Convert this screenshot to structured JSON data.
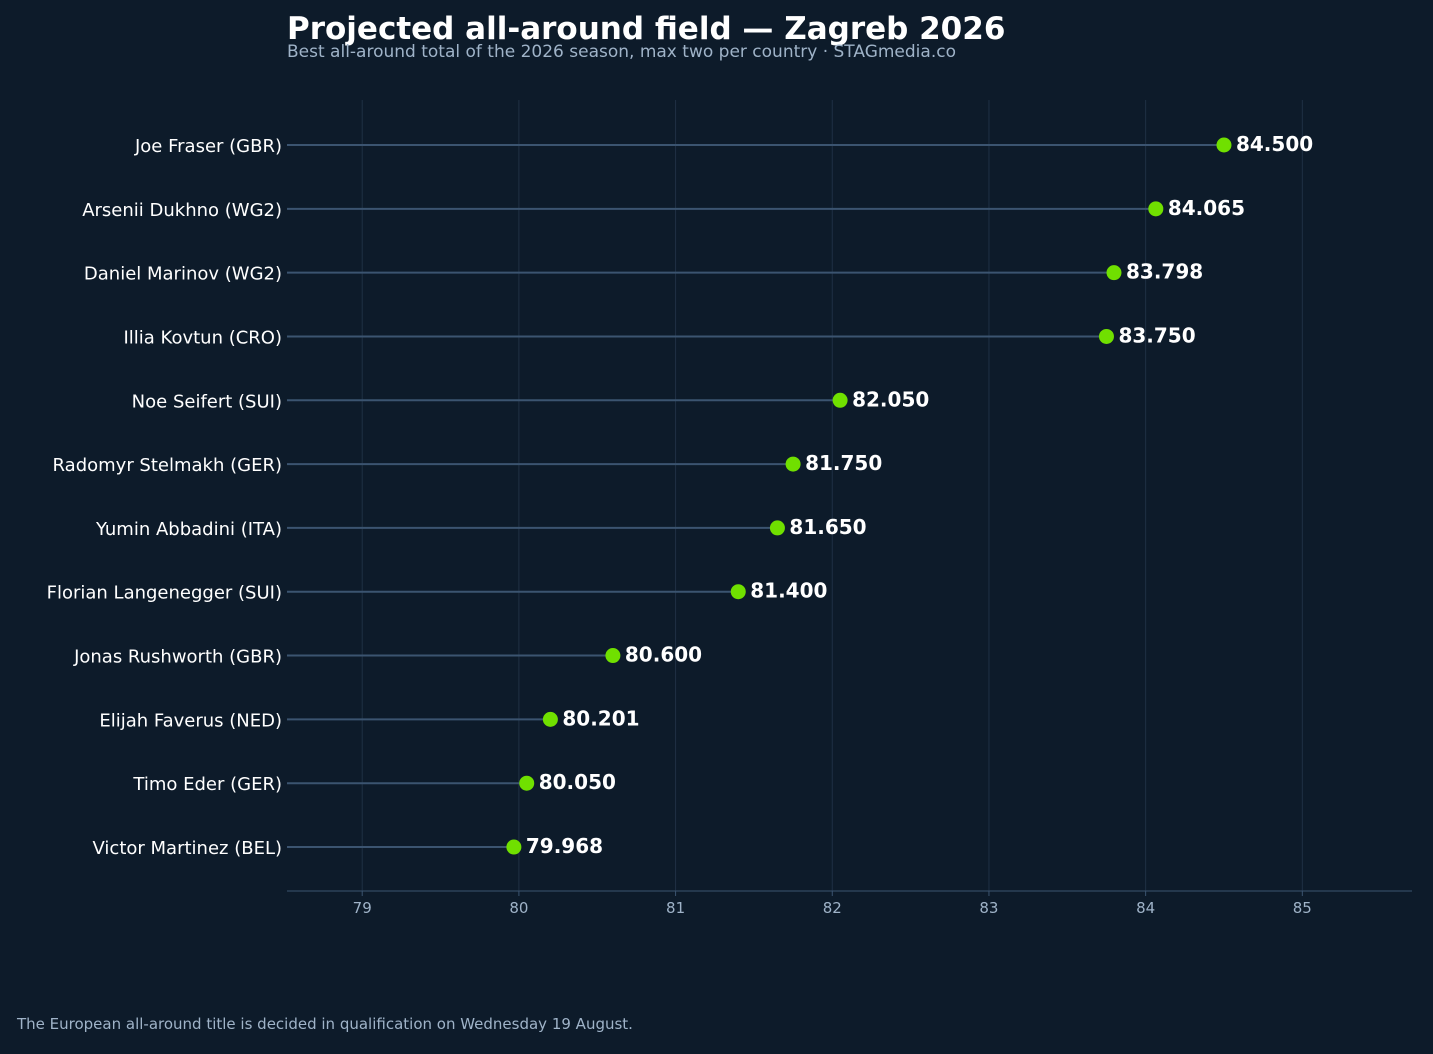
{
  "colors": {
    "background": "#0d1b2a",
    "marker": "#70e000",
    "stem": "#3b5470",
    "grid": "#1f3044",
    "axis": "#3b5470",
    "text": "#ffffff",
    "muted": "#9fb3c8"
  },
  "chart_data": {
    "type": "lollipop",
    "orientation": "horizontal",
    "title": "Projected all-around field — Zagreb 2026",
    "subtitle": "Best all-around total of the 2026 season, max two per country · STAGmedia.co",
    "footnote": "The European all-around title is decided in qualification on Wednesday 19 August.",
    "xlabel": "",
    "ylabel": "",
    "xlim": [
      78.52,
      85.7
    ],
    "xticks": [
      79,
      80,
      81,
      82,
      83,
      84,
      85
    ],
    "grid": "vertical",
    "legend": "none",
    "categories": [
      "Joe Fraser (GBR)",
      "Arsenii Dukhno (WG2)",
      "Daniel Marinov (WG2)",
      "Illia Kovtun (CRO)",
      "Noe Seifert (SUI)",
      "Radomyr Stelmakh (GER)",
      "Yumin Abbadini (ITA)",
      "Florian Langenegger (SUI)",
      "Jonas Rushworth (GBR)",
      "Elijah Faverus (NED)",
      "Timo Eder (GER)",
      "Victor Martinez (BEL)"
    ],
    "values": [
      84.5,
      84.065,
      83.798,
      83.75,
      82.05,
      81.75,
      81.65,
      81.4,
      80.6,
      80.201,
      80.05,
      79.968
    ],
    "value_labels": [
      "84.500",
      "84.065",
      "83.798",
      "83.750",
      "82.050",
      "81.750",
      "81.650",
      "81.400",
      "80.600",
      "80.201",
      "80.050",
      "79.968"
    ]
  }
}
